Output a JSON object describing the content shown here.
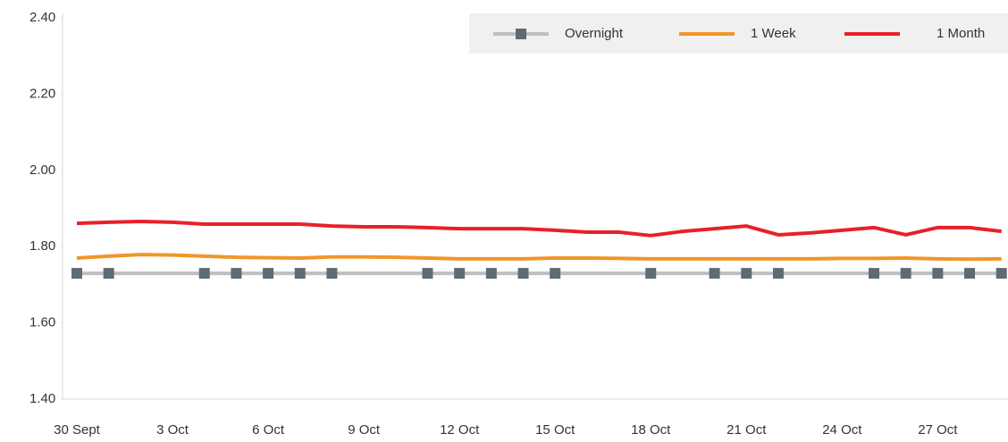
{
  "chart_data": {
    "type": "line",
    "categories": [
      "30 Sept",
      null,
      null,
      "3 Oct",
      null,
      null,
      "6 Oct",
      null,
      null,
      "9 Oct",
      null,
      null,
      "12 Oct",
      null,
      null,
      "15 Oct",
      null,
      null,
      "18 Oct",
      null,
      null,
      "21 Oct",
      null,
      null,
      "24 Oct",
      null,
      null,
      "27 Oct",
      null,
      null
    ],
    "series": [
      {
        "name": "Overnight",
        "color": "#bfbfbf",
        "marker_color": "#5f6b73",
        "connect_gaps": true,
        "values": [
          1.73,
          1.73,
          null,
          null,
          1.73,
          1.73,
          1.73,
          1.73,
          1.73,
          null,
          null,
          1.73,
          1.73,
          1.73,
          1.73,
          1.73,
          null,
          null,
          1.73,
          null,
          1.73,
          1.73,
          1.73,
          null,
          null,
          1.73,
          1.73,
          1.73,
          1.73,
          1.73
        ]
      },
      {
        "name": "1 Week",
        "color": "#f0962b",
        "values": [
          1.77,
          1.775,
          1.779,
          1.778,
          1.775,
          1.772,
          1.771,
          1.77,
          1.773,
          1.773,
          1.772,
          1.77,
          1.768,
          1.768,
          1.768,
          1.77,
          1.77,
          1.769,
          1.768,
          1.768,
          1.768,
          1.768,
          1.768,
          1.768,
          1.769,
          1.769,
          1.77,
          1.768,
          1.767,
          1.768
        ]
      },
      {
        "name": "1 Month",
        "color": "#e8202a",
        "values": [
          1.861,
          1.864,
          1.866,
          1.864,
          1.859,
          1.859,
          1.859,
          1.859,
          1.854,
          1.852,
          1.852,
          1.85,
          1.847,
          1.847,
          1.847,
          1.843,
          1.838,
          1.838,
          1.829,
          1.84,
          1.847,
          1.854,
          1.831,
          1.836,
          1.843,
          1.85,
          1.831,
          1.85,
          1.85,
          1.84
        ]
      }
    ],
    "ylim": [
      1.4,
      2.4
    ],
    "yticks": [
      {
        "value": 1.4,
        "label": "1.40"
      },
      {
        "value": 1.6,
        "label": "1.60"
      },
      {
        "value": 1.8,
        "label": "1.80"
      },
      {
        "value": 2.0,
        "label": "2.00"
      },
      {
        "value": 2.2,
        "label": "2.20"
      },
      {
        "value": 2.4,
        "label": "2.40"
      }
    ],
    "legend": "top-right"
  }
}
